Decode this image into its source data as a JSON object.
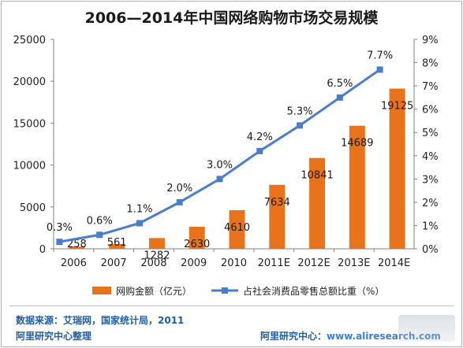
{
  "title": "2006—2014年中国网络购物市场交易规模",
  "chart_data": {
    "type": "bar+line",
    "categories": [
      "2006",
      "2007",
      "2008",
      "2009",
      "2010",
      "2011E",
      "2012E",
      "2013E",
      "2014E"
    ],
    "series": [
      {
        "name": "网购金额（亿元）",
        "type": "bar",
        "axis": "left",
        "color": "#e8731a",
        "values": [
          258,
          561,
          1282,
          2630,
          4610,
          7634,
          10841,
          14689,
          19125
        ],
        "labels": [
          "258",
          "561",
          "1282",
          "2630",
          "4610",
          "7634",
          "10841",
          "14689",
          "19125"
        ]
      },
      {
        "name": "占社会消费品零售总额比重（%）",
        "type": "line",
        "axis": "right",
        "color": "#4a7ec8",
        "values": [
          0.3,
          0.6,
          1.1,
          2.0,
          3.0,
          4.2,
          5.3,
          6.5,
          7.7
        ],
        "labels": [
          "0.3%",
          "0.6%",
          "1.1%",
          "2.0%",
          "3.0%",
          "4.2%",
          "5.3%",
          "6.5%",
          "7.7%"
        ]
      }
    ],
    "y_left": {
      "min": 0,
      "max": 25000,
      "ticks": [
        "0",
        "5000",
        "10000",
        "15000",
        "20000",
        "25000"
      ]
    },
    "y_right": {
      "min": 0,
      "max": 9,
      "ticks": [
        "0%",
        "1%",
        "2%",
        "3%",
        "4%",
        "5%",
        "6%",
        "7%",
        "8%",
        "9%"
      ]
    },
    "grid": false,
    "legend_position": "bottom"
  },
  "footer": {
    "source": "数据来源：艾瑞网，国家统计局，2011",
    "org_left": "阿里研究中心整理",
    "org_right_label": "阿里研究中心：",
    "org_right_url": "www.aliresearch.com"
  }
}
